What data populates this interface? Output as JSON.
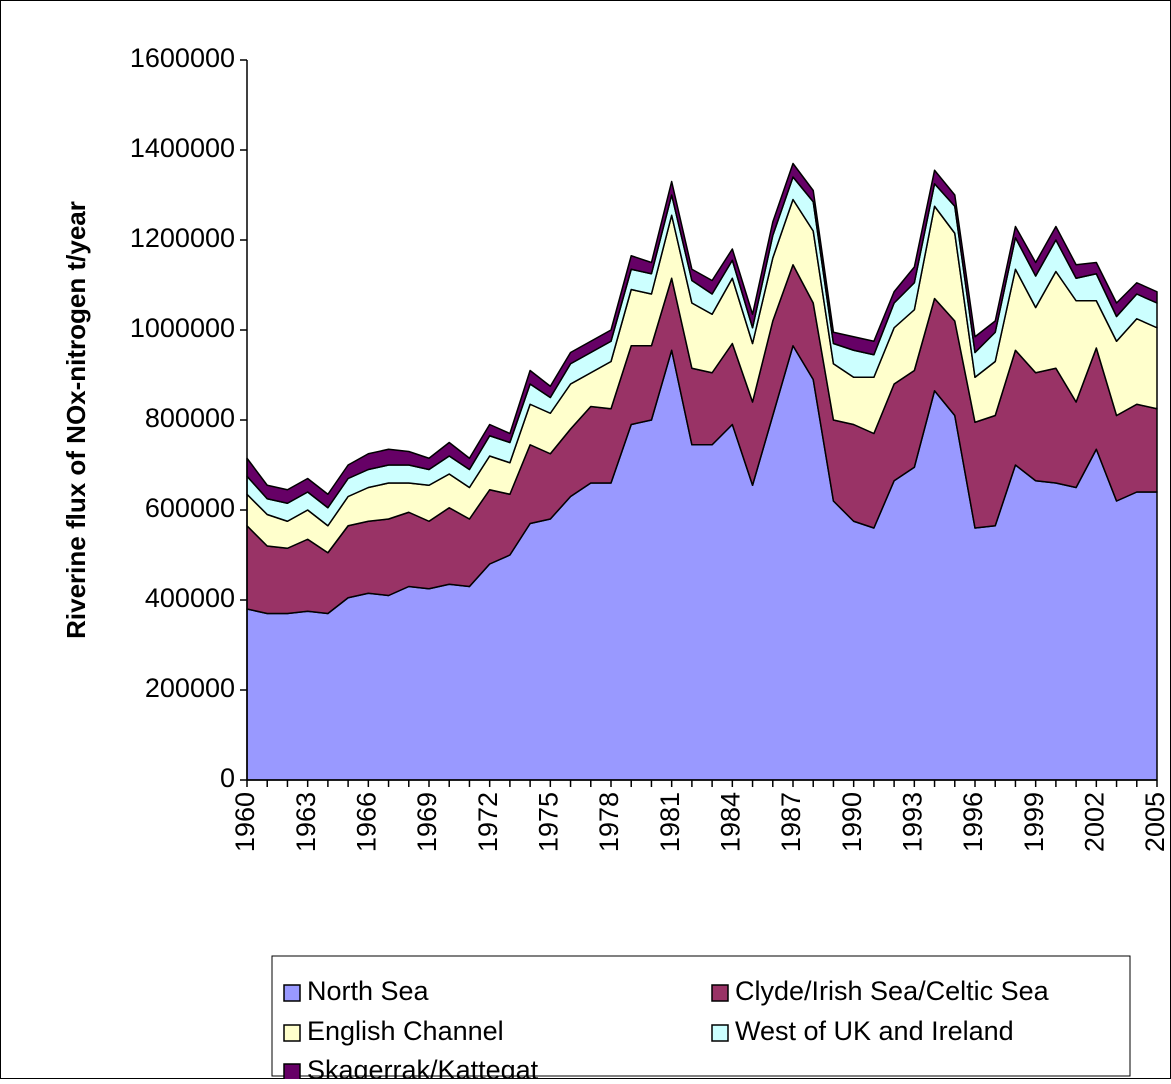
{
  "chart_data": {
    "type": "stacked-area",
    "y_label": "Riverine flux of NOx-nitrogen t/year",
    "categories": [
      "1960",
      null,
      null,
      "1963",
      null,
      null,
      "1966",
      null,
      null,
      "1969",
      null,
      null,
      "1972",
      null,
      null,
      "1975",
      null,
      null,
      "1978",
      null,
      null,
      "1981",
      null,
      null,
      "1984",
      null,
      null,
      "1987",
      null,
      null,
      "1990",
      null,
      null,
      "1993",
      null,
      null,
      "1996",
      null,
      null,
      "1999",
      null,
      null,
      "2002",
      null,
      null,
      "2005"
    ],
    "ylim": [
      0,
      1600000
    ],
    "yticks": [
      0,
      200000,
      400000,
      600000,
      800000,
      1000000,
      1200000,
      1400000,
      1600000
    ],
    "series": [
      {
        "name": "North Sea",
        "color": "#9999ff",
        "values": [
          380000,
          370000,
          370000,
          375000,
          370000,
          405000,
          415000,
          410000,
          430000,
          425000,
          435000,
          430000,
          480000,
          500000,
          570000,
          580000,
          630000,
          660000,
          660000,
          790000,
          800000,
          955000,
          745000,
          745000,
          790000,
          655000,
          810000,
          965000,
          890000,
          620000,
          575000,
          560000,
          665000,
          695000,
          865000,
          810000,
          560000,
          565000,
          700000,
          665000,
          660000,
          650000,
          735000,
          620000,
          640000,
          640000
        ]
      },
      {
        "name": "Clyde/Irish Sea/Celtic Sea",
        "color": "#993366",
        "values": [
          185000,
          150000,
          145000,
          160000,
          135000,
          160000,
          160000,
          170000,
          165000,
          150000,
          170000,
          150000,
          165000,
          135000,
          175000,
          145000,
          150000,
          170000,
          165000,
          175000,
          165000,
          160000,
          170000,
          160000,
          180000,
          185000,
          210000,
          180000,
          170000,
          180000,
          215000,
          210000,
          215000,
          215000,
          205000,
          210000,
          235000,
          245000,
          255000,
          240000,
          255000,
          190000,
          225000,
          190000,
          195000,
          185000
        ]
      },
      {
        "name": "English Channel",
        "color": "#ffffcc",
        "values": [
          70000,
          70000,
          60000,
          65000,
          60000,
          65000,
          75000,
          80000,
          65000,
          80000,
          75000,
          70000,
          75000,
          70000,
          90000,
          90000,
          100000,
          75000,
          105000,
          125000,
          115000,
          140000,
          145000,
          130000,
          145000,
          130000,
          140000,
          145000,
          160000,
          125000,
          105000,
          125000,
          125000,
          135000,
          205000,
          195000,
          100000,
          120000,
          180000,
          145000,
          215000,
          225000,
          105000,
          165000,
          190000,
          180000
        ]
      },
      {
        "name": "West of UK and Ireland",
        "color": "#ccffff",
        "values": [
          40000,
          35000,
          40000,
          40000,
          40000,
          40000,
          40000,
          40000,
          40000,
          35000,
          40000,
          40000,
          45000,
          45000,
          45000,
          35000,
          45000,
          45000,
          45000,
          45000,
          45000,
          45000,
          50000,
          45000,
          40000,
          35000,
          50000,
          50000,
          65000,
          45000,
          60000,
          50000,
          55000,
          60000,
          50000,
          60000,
          55000,
          65000,
          70000,
          70000,
          70000,
          50000,
          60000,
          55000,
          55000,
          55000
        ]
      },
      {
        "name": "Skagerrak/Kattegat",
        "color": "#660066",
        "values": [
          40000,
          30000,
          30000,
          30000,
          30000,
          30000,
          35000,
          35000,
          30000,
          25000,
          30000,
          25000,
          25000,
          20000,
          30000,
          25000,
          25000,
          25000,
          25000,
          30000,
          25000,
          30000,
          25000,
          30000,
          25000,
          30000,
          30000,
          30000,
          25000,
          25000,
          30000,
          30000,
          25000,
          35000,
          30000,
          25000,
          35000,
          25000,
          25000,
          30000,
          30000,
          30000,
          25000,
          30000,
          25000,
          25000
        ]
      }
    ]
  }
}
